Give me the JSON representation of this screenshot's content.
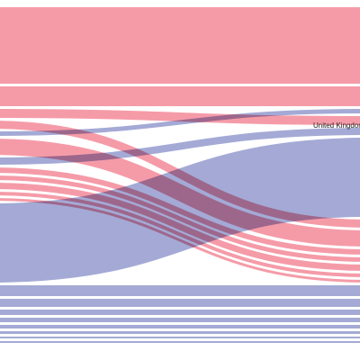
{
  "colors": {
    "pink": "#f4909f",
    "blue": "#9aa1d0",
    "background": "#ffffff"
  },
  "labels": {
    "united_kingdom": "United Kingdom"
  },
  "flows": [
    {
      "name": "flow-pink-main",
      "color": "pink",
      "source_rank": 1,
      "target_rank": 1,
      "value": 85
    },
    {
      "name": "flow-pink-second",
      "color": "pink",
      "source_rank": 2,
      "target_rank": 2,
      "value": 22
    },
    {
      "name": "flow-pink-third",
      "color": "pink",
      "source_rank": 3,
      "target_rank": 3,
      "value": 10
    },
    {
      "name": "flow-pink-cross-upper",
      "color": "pink",
      "source_rank": 4,
      "target_rank": 6,
      "value": 9
    },
    {
      "name": "flow-pink-cross-mid",
      "color": "pink",
      "source_rank": 5,
      "target_rank": 7,
      "value": 18
    },
    {
      "name": "flow-pink-cross-a",
      "color": "pink",
      "source_rank": 6,
      "target_rank": 8,
      "value": 6
    },
    {
      "name": "flow-pink-cross-b",
      "color": "pink",
      "source_rank": 7,
      "target_rank": 9,
      "value": 5
    },
    {
      "name": "flow-pink-cross-c",
      "color": "pink",
      "source_rank": 8,
      "target_rank": 10,
      "value": 7
    },
    {
      "name": "flow-pink-cross-d",
      "color": "pink",
      "source_rank": 9,
      "target_rank": 11,
      "value": 4
    },
    {
      "name": "flow-pink-cross-e",
      "color": "pink",
      "source_rank": 10,
      "target_rank": 12,
      "value": 3
    },
    {
      "name": "flow-blue-up-thin",
      "color": "blue",
      "source_rank": 4,
      "target_rank": 2,
      "value": 5
    },
    {
      "name": "flow-blue-up-uk",
      "color": "blue",
      "source_rank": 5,
      "target_rank": 4,
      "value": 8
    },
    {
      "name": "flow-blue-main",
      "color": "blue",
      "source_rank": 11,
      "target_rank": 5,
      "value": 88
    },
    {
      "name": "flow-blue-lower-a",
      "color": "blue",
      "source_rank": 12,
      "target_rank": 13,
      "value": 12
    },
    {
      "name": "flow-blue-lower-b",
      "color": "blue",
      "source_rank": 13,
      "target_rank": 14,
      "value": 9
    },
    {
      "name": "flow-blue-lower-c",
      "color": "blue",
      "source_rank": 14,
      "target_rank": 15,
      "value": 6
    },
    {
      "name": "flow-blue-lower-d",
      "color": "blue",
      "source_rank": 15,
      "target_rank": 16,
      "value": 5
    },
    {
      "name": "flow-blue-lower-e",
      "color": "blue",
      "source_rank": 16,
      "target_rank": 17,
      "value": 4
    },
    {
      "name": "flow-blue-lower-f",
      "color": "blue",
      "source_rank": 17,
      "target_rank": 18,
      "value": 3
    },
    {
      "name": "flow-blue-lower-g",
      "color": "blue",
      "source_rank": 18,
      "target_rank": 19,
      "value": 2
    },
    {
      "name": "flow-blue-lower-h",
      "color": "blue",
      "source_rank": 19,
      "target_rank": 20,
      "value": 2
    }
  ]
}
